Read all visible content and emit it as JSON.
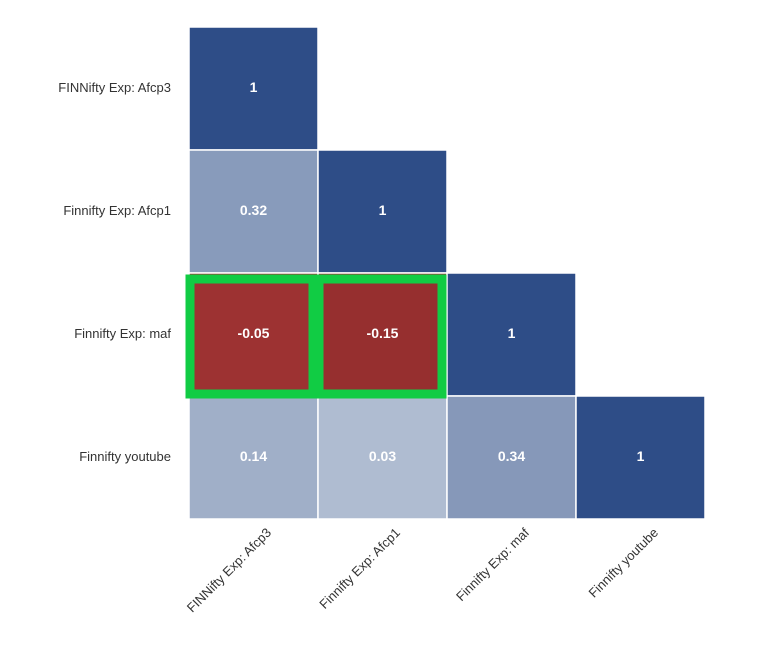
{
  "chart_data": {
    "type": "heatmap",
    "rows": [
      "FINNifty Exp: Afcp3",
      "Finnifty Exp: Afcp1",
      "Finnifty Exp: maf",
      "Finnifty youtube"
    ],
    "columns": [
      "FINNifty Exp: Afcp3",
      "Finnifty Exp: Afcp1",
      "Finnifty Exp: maf",
      "Finnifty youtube"
    ],
    "values": [
      [
        1,
        null,
        null,
        null
      ],
      [
        0.32,
        1,
        null,
        null
      ],
      [
        -0.05,
        -0.15,
        1,
        null
      ],
      [
        0.14,
        0.03,
        0.34,
        1
      ]
    ],
    "colors": {
      "positive_light": "#b3bfd3",
      "positive_dark": "#2e4d87",
      "negative_light": "#a03434",
      "negative_dark": "#5c1010",
      "highlight": "#11cc44"
    },
    "highlighted": [
      [
        2,
        0
      ],
      [
        2,
        1
      ]
    ]
  }
}
